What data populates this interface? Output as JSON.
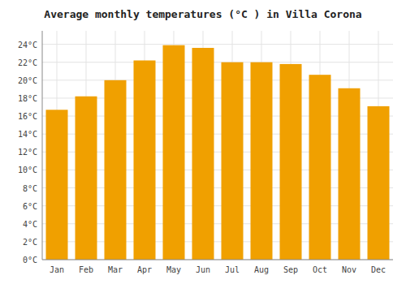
{
  "chart_data": {
    "type": "bar",
    "title": "Average monthly temperatures (°C ) in Villa Corona",
    "categories": [
      "Jan",
      "Feb",
      "Mar",
      "Apr",
      "May",
      "Jun",
      "Jul",
      "Aug",
      "Sep",
      "Oct",
      "Nov",
      "Dec"
    ],
    "values": [
      16.7,
      18.2,
      20.0,
      22.2,
      23.9,
      23.6,
      22.0,
      22.0,
      21.8,
      20.6,
      19.1,
      17.1
    ],
    "color": "#F0A000",
    "ylim": [
      0,
      25.5
    ],
    "yticks": [
      {
        "value": 0,
        "label": "0°C"
      },
      {
        "value": 2,
        "label": "2°C"
      },
      {
        "value": 4,
        "label": "4°C"
      },
      {
        "value": 6,
        "label": "6°C"
      },
      {
        "value": 8,
        "label": "8°C"
      },
      {
        "value": 10,
        "label": "10°C"
      },
      {
        "value": 12,
        "label": "12°C"
      },
      {
        "value": 14,
        "label": "14°C"
      },
      {
        "value": 16,
        "label": "16°C"
      },
      {
        "value": 18,
        "label": "18°C"
      },
      {
        "value": 20,
        "label": "20°C"
      },
      {
        "value": 22,
        "label": "22°C"
      },
      {
        "value": 24,
        "label": "24°C"
      }
    ],
    "grid": true
  }
}
